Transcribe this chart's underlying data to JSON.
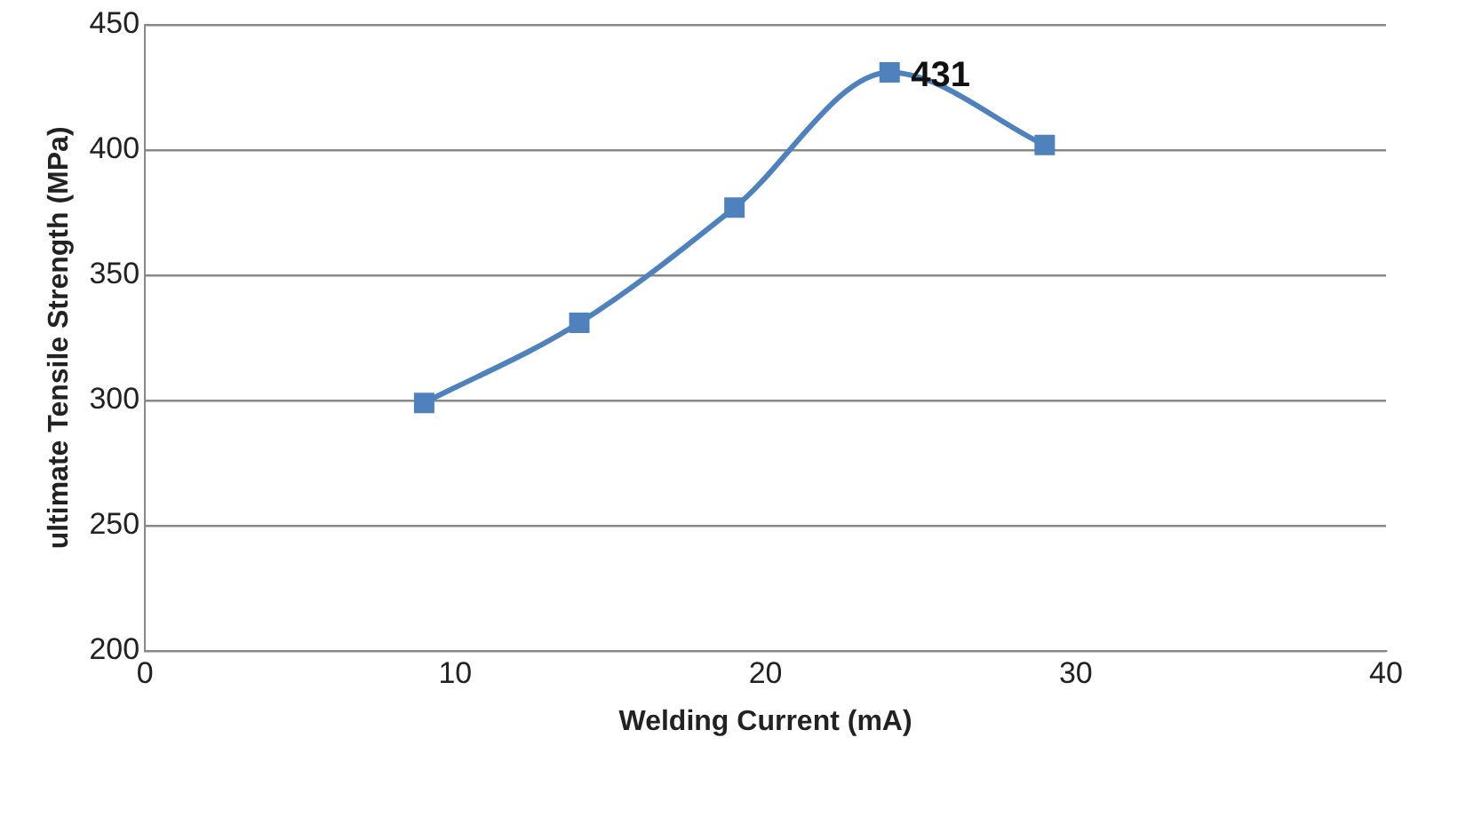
{
  "chart_data": {
    "type": "line",
    "xlabel": "Welding Current (mA)",
    "ylabel": "ultimate Tensile Strength (MPa)",
    "x": [
      9,
      14,
      19,
      24,
      29
    ],
    "series": [
      {
        "color": "#4f81bd",
        "values": [
          299,
          331,
          377,
          431,
          402
        ],
        "value_labels": [
          null,
          null,
          null,
          "431",
          null
        ]
      }
    ],
    "xlim": [
      0,
      40
    ],
    "xticks": [
      0,
      10,
      20,
      30,
      40
    ],
    "ylim": [
      200,
      450
    ],
    "yticks": [
      200,
      250,
      300,
      350,
      400,
      450
    ],
    "grid": "y",
    "legend": false,
    "marker": "square",
    "line_style": "solid"
  }
}
